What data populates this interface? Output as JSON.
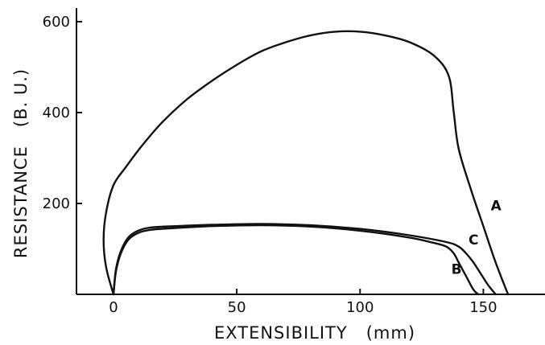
{
  "chart_data": {
    "type": "line",
    "title": "",
    "xlabel": "EXTENSIBILITY   (mm)",
    "ylabel": "RESISTANCE   (B. U.)",
    "xlim": [
      -15,
      175
    ],
    "ylim": [
      0,
      630
    ],
    "x_ticks": [
      0,
      50,
      100,
      150
    ],
    "y_ticks": [
      200,
      400,
      600
    ],
    "grid": false,
    "legend": "none",
    "series": [
      {
        "name": "A",
        "x": [
          0,
          -3,
          -4,
          -3,
          0,
          5,
          12,
          20,
          30,
          40,
          50,
          60,
          70,
          80,
          90,
          100,
          110,
          120,
          130,
          136,
          138,
          140,
          145,
          150,
          155,
          160
        ],
        "y": [
          0,
          60,
          120,
          180,
          240,
          280,
          330,
          380,
          430,
          470,
          505,
          535,
          555,
          570,
          578,
          578,
          570,
          555,
          525,
          480,
          400,
          320,
          230,
          150,
          70,
          0
        ]
      },
      {
        "name": "B",
        "x": [
          0,
          1,
          3,
          6,
          10,
          15,
          25,
          40,
          60,
          80,
          100,
          120,
          130,
          135,
          138,
          140,
          143,
          146,
          148
        ],
        "y": [
          0,
          50,
          90,
          120,
          135,
          142,
          146,
          150,
          152,
          149,
          140,
          125,
          113,
          105,
          90,
          70,
          40,
          10,
          0
        ]
      },
      {
        "name": "C",
        "x": [
          0,
          1,
          3,
          6,
          10,
          15,
          25,
          40,
          60,
          80,
          100,
          120,
          135,
          140,
          143,
          146,
          149,
          152,
          155
        ],
        "y": [
          0,
          55,
          95,
          125,
          140,
          147,
          150,
          153,
          155,
          152,
          144,
          130,
          115,
          105,
          90,
          70,
          45,
          20,
          0
        ]
      }
    ],
    "annotations": [
      {
        "text": "A",
        "x": 153,
        "y": 185
      },
      {
        "text": "C",
        "x": 144,
        "y": 110
      },
      {
        "text": "B",
        "x": 137,
        "y": 45
      }
    ]
  }
}
